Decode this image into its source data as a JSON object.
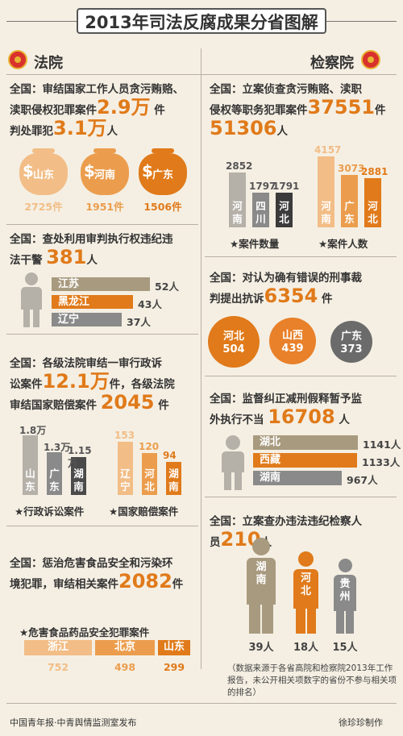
{
  "title": "2013年司法反腐成果分省图解",
  "colors": {
    "orange": "#e07a1a",
    "orange_light": "#f2bd86",
    "dark": "#4a4a4a",
    "gray": "#8a8a8a",
    "gray_light": "#b5b0a8",
    "brown": "#a89a7f",
    "bg": "#f5efe3"
  },
  "court": {
    "header": "法院",
    "s1": {
      "line1": "全国：审结国家工作人员贪污贿赂、",
      "line2a": "渎职侵权犯罪案件",
      "num1": "2.9万",
      "unit1": "件",
      "line3a": "判处罪犯",
      "num2": "3.1万",
      "unit2": "人",
      "bags": [
        {
          "label": "山东",
          "count": "2725件",
          "color": "#f2bd86"
        },
        {
          "label": "河南",
          "count": "1951件",
          "color": "#eb9d4d"
        },
        {
          "label": "广东",
          "count": "1506件",
          "color": "#e07a1a"
        }
      ]
    },
    "s2": {
      "line1": "全国：查处利用审判执行权违纪违",
      "line2a": "法干警",
      "num": "381",
      "unit": "人",
      "bars": [
        {
          "label": "江苏",
          "value": 52,
          "value_label": "52人",
          "color": "#a89a7f"
        },
        {
          "label": "黑龙江",
          "value": 43,
          "value_label": "43人",
          "color": "#e07a1a"
        },
        {
          "label": "辽宁",
          "value": 37,
          "value_label": "37人",
          "color": "#8a8a8a"
        }
      ]
    },
    "s3": {
      "line1": "全国：各级法院审结一审行政诉",
      "line2a": "讼案件",
      "num1": "12.1万",
      "line2b": "件，各级法院",
      "line3a": "审结国家赔偿案件",
      "num2": "2045",
      "unit2": "件",
      "admin": {
        "caption": "★行政诉讼案件",
        "bars": [
          {
            "label": "山东",
            "value": 1.8,
            "value_label": "1.8万",
            "color": "#b5b0a8"
          },
          {
            "label": "广东",
            "value": 1.3,
            "value_label": "1.3万",
            "color": "#8a8a8a"
          },
          {
            "label": "湖南",
            "value": 1.15,
            "value_label": "1.15万",
            "color": "#4a4a4a"
          }
        ]
      },
      "compensation": {
        "caption": "★国家赔偿案件",
        "bars": [
          {
            "label": "辽宁",
            "value": 153,
            "value_label": "153",
            "color": "#f2bd86"
          },
          {
            "label": "河北",
            "value": 120,
            "value_label": "120",
            "color": "#eb9d4d"
          },
          {
            "label": "湖南",
            "value": 94,
            "value_label": "94",
            "color": "#e07a1a"
          }
        ]
      }
    },
    "s4": {
      "line1": "全国：惩治危害食品安全和污染环",
      "line2a": "境犯罪，审结相关案件",
      "num": "2082",
      "unit": "件",
      "caption": "★危害食品药品安全犯罪案件",
      "bars": [
        {
          "label": "浙江",
          "value": 752,
          "value_label": "752",
          "color": "#f2bd86"
        },
        {
          "label": "北京",
          "value": 498,
          "value_label": "498",
          "color": "#eb9d4d"
        },
        {
          "label": "山东",
          "value": 299,
          "value_label": "299",
          "color": "#e07a1a"
        }
      ]
    }
  },
  "procuratorate": {
    "header": "检察院",
    "s1": {
      "line1": "全国：立案侦查贪污贿赂、渎职",
      "line2a": "侵权等职务犯罪案件",
      "num1": "37551",
      "unit1": "件",
      "num2": "51306",
      "unit2": "人",
      "cases": {
        "caption": "★案件数量",
        "bars": [
          {
            "label": "河南",
            "value": 2852,
            "value_label": "2852",
            "color": "#b5b0a8"
          },
          {
            "label": "四川",
            "value": 1797,
            "value_label": "1797",
            "color": "#8a8a8a"
          },
          {
            "label": "河北",
            "value": 1791,
            "value_label": "1791",
            "color": "#3b3b3b"
          }
        ]
      },
      "people": {
        "caption": "★案件人数",
        "bars": [
          {
            "label": "河南",
            "value": 4157,
            "value_label": "4157",
            "color": "#f2bd86"
          },
          {
            "label": "广东",
            "value": 3073,
            "value_label": "3073",
            "color": "#eb9d4d"
          },
          {
            "label": "河北",
            "value": 2881,
            "value_label": "2881",
            "color": "#e07a1a"
          }
        ]
      }
    },
    "s2": {
      "line1": "全国：对认为确有错误的刑事裁",
      "line2a": "判提出抗诉",
      "num": "6354",
      "unit": "件",
      "circles": [
        {
          "label": "河北",
          "value": "504",
          "color": "#e07a1a"
        },
        {
          "label": "山西",
          "value": "439",
          "color": "#e8812a"
        },
        {
          "label": "广东",
          "value": "373",
          "color": "#6b6b6b"
        }
      ]
    },
    "s3": {
      "line1": "全国：监督纠正减刑假释暂予监",
      "line2a": "外执行不当",
      "num": "16708",
      "unit": "人",
      "bars": [
        {
          "label": "湖北",
          "value": 1141,
          "value_label": "1141人",
          "color": "#a89a7f"
        },
        {
          "label": "西藏",
          "value": 1133,
          "value_label": "1133人",
          "color": "#e07a1a"
        },
        {
          "label": "湖南",
          "value": 967,
          "value_label": "967人",
          "color": "#8a8a8a"
        }
      ]
    },
    "s4": {
      "line1": "全国：立案查办违法违纪检察人",
      "line2a": "员",
      "num": "210",
      "unit": "人",
      "people": [
        {
          "label": "湖南",
          "value_label": "39人",
          "color": "#a89a7f"
        },
        {
          "label": "河北",
          "value_label": "18人",
          "color": "#e07a1a"
        },
        {
          "label": "贵州",
          "value_label": "15人",
          "color": "#8a8a8a"
        }
      ]
    },
    "note": "（数据来源于各省高院和检察院2013年工作报告，未公开相关项数字的省份不参与相关项的排名）"
  },
  "footer": {
    "left": "中国青年报·中青舆情监测室发布",
    "right": "徐珍珍制作"
  },
  "chart_data": [
    {
      "type": "bar",
      "categories": [
        "山东",
        "河南",
        "广东"
      ],
      "values": [
        2725,
        1951,
        1506
      ]
    },
    {
      "type": "bar",
      "categories": [
        "江苏",
        "黑龙江",
        "辽宁"
      ],
      "values": [
        52,
        43,
        37
      ]
    },
    {
      "type": "bar",
      "title": "★行政诉讼案件",
      "categories": [
        "山东",
        "广东",
        "湖南"
      ],
      "values": [
        1.8,
        1.3,
        1.15
      ]
    },
    {
      "type": "bar",
      "title": "★国家赔偿案件",
      "categories": [
        "辽宁",
        "河北",
        "湖南"
      ],
      "values": [
        153,
        120,
        94
      ]
    },
    {
      "type": "bar",
      "title": "★危害食品药品安全犯罪案件",
      "categories": [
        "浙江",
        "北京",
        "山东"
      ],
      "values": [
        752,
        498,
        299
      ]
    },
    {
      "type": "bar",
      "title": "★案件数量",
      "categories": [
        "河南",
        "四川",
        "河北"
      ],
      "values": [
        2852,
        1797,
        1791
      ]
    },
    {
      "type": "bar",
      "title": "★案件人数",
      "categories": [
        "河南",
        "广东",
        "河北"
      ],
      "values": [
        4157,
        3073,
        2881
      ]
    },
    {
      "type": "bar",
      "categories": [
        "河北",
        "山西",
        "广东"
      ],
      "values": [
        504,
        439,
        373
      ]
    },
    {
      "type": "bar",
      "categories": [
        "湖北",
        "西藏",
        "湖南"
      ],
      "values": [
        1141,
        1133,
        967
      ]
    },
    {
      "type": "bar",
      "categories": [
        "湖南",
        "河北",
        "贵州"
      ],
      "values": [
        39,
        18,
        15
      ]
    }
  ]
}
